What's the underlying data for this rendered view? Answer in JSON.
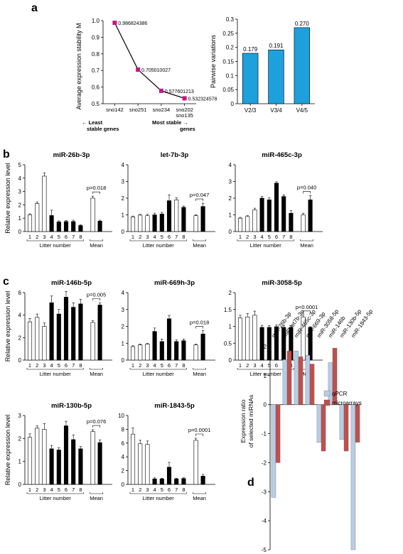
{
  "panel_labels": [
    "a",
    "b",
    "c",
    "d"
  ],
  "chart_data": [
    {
      "id": "a1",
      "type": "line",
      "ylabel": "Average expression stability M",
      "categories": [
        "sno142",
        "sno251",
        "sno234",
        "sno202\nsno135"
      ],
      "values": [
        0.986824386,
        0.705010027,
        0.577601213,
        0.532324578
      ],
      "value_labels": [
        "0.986824386",
        "0.705010027",
        "0.577601213",
        "0.532324578"
      ],
      "ylim": [
        0.5,
        1.0
      ],
      "yticks": [
        0.5,
        0.6,
        0.7,
        0.8,
        0.9,
        1.0
      ],
      "ytick_labels": [
        "0.5",
        "0.6",
        "0.7",
        "0.8",
        "0.9",
        "1.0"
      ],
      "annotation_left": "Least stable genes",
      "annotation_right": "Most stable genes",
      "marker_color": "#c71585"
    },
    {
      "id": "a2",
      "type": "bar",
      "ylabel": "Pairwise variations",
      "categories": [
        "V2/3",
        "V3/4",
        "V4/5"
      ],
      "values": [
        0.179,
        0.191,
        0.27
      ],
      "value_labels": [
        "0.179",
        "0.191",
        "0.270"
      ],
      "ylim": [
        0,
        0.3
      ],
      "yticks": [
        0,
        0.05,
        0.1,
        0.15,
        0.2,
        0.25,
        0.3
      ],
      "ytick_labels": [
        "0",
        "0.05",
        "0.1",
        "0.15",
        "0.2",
        "0.25",
        "0.3"
      ],
      "bar_color": "#1ea0dc"
    },
    {
      "id": "b1",
      "type": "bar",
      "title": "miR-26b-3p",
      "ylabel": "Relative expression level",
      "xlabel": "Litter number",
      "ylim": [
        0,
        5
      ],
      "yticks": [
        0,
        1,
        2,
        3,
        4,
        5
      ],
      "ytick_labels": [
        "0",
        "1",
        "2",
        "3",
        "4",
        "5"
      ],
      "categories": [
        "1",
        "2",
        "3",
        "4",
        "5",
        "6",
        "7",
        "8"
      ],
      "values": [
        1.25,
        2.1,
        4.15,
        1.2,
        0.72,
        0.75,
        0.75,
        0.45
      ],
      "errors": [
        0.08,
        0.12,
        0.25,
        0.4,
        0.08,
        0.08,
        0.1,
        0.05
      ],
      "fill": [
        "white",
        "white",
        "white",
        "black",
        "black",
        "black",
        "black",
        "black"
      ],
      "mean_label": "Mean",
      "mean_values": [
        2.5,
        0.78
      ],
      "mean_errors": [
        0.15,
        0.07
      ],
      "pvalue": "p=0.018"
    },
    {
      "id": "b2",
      "type": "bar",
      "title": "let-7b-3p",
      "xlabel": "Litter number",
      "ylim": [
        0,
        4
      ],
      "yticks": [
        0,
        1,
        2,
        3,
        4
      ],
      "ytick_labels": [
        "0",
        "1",
        "2",
        "3",
        "4"
      ],
      "categories": [
        "1",
        "2",
        "3",
        "4",
        "5",
        "6",
        "7",
        "8"
      ],
      "values": [
        0.88,
        0.98,
        0.95,
        1.0,
        1.05,
        1.85,
        1.9,
        1.45
      ],
      "errors": [
        0.05,
        0.05,
        0.08,
        0.1,
        0.1,
        0.35,
        0.12,
        0.08
      ],
      "fill": [
        "white",
        "white",
        "white",
        "black",
        "black",
        "black",
        "white",
        "black"
      ],
      "mean_label": "Mean",
      "mean_values": [
        0.95,
        1.5
      ],
      "mean_errors": [
        0.06,
        0.2
      ],
      "pvalue": "p=0.047"
    },
    {
      "id": "b3",
      "type": "bar",
      "title": "miR-465c-3p",
      "xlabel": "Litter number",
      "ylim": [
        0,
        4
      ],
      "yticks": [
        0,
        1,
        2,
        3,
        4
      ],
      "ytick_labels": [
        "0",
        "1",
        "2",
        "3",
        "4"
      ],
      "categories": [
        "1",
        "2",
        "3",
        "4",
        "5",
        "6",
        "7",
        "8"
      ],
      "values": [
        0.8,
        0.9,
        1.3,
        2.0,
        1.9,
        2.9,
        2.1,
        1.1
      ],
      "errors": [
        0.05,
        0.05,
        0.1,
        0.1,
        0.12,
        0.08,
        0.1,
        0.15
      ],
      "fill": [
        "white",
        "white",
        "white",
        "black",
        "black",
        "black",
        "black",
        "black"
      ],
      "mean_label": "Mean",
      "mean_values": [
        1.0,
        1.9
      ],
      "mean_errors": [
        0.1,
        0.25
      ],
      "pvalue": "p=0.040"
    },
    {
      "id": "c1",
      "type": "bar",
      "title": "miR-146b-5p",
      "ylabel": "Relative expression level",
      "xlabel": "Litter number",
      "ylim": [
        0,
        6
      ],
      "yticks": [
        0,
        2,
        4,
        6
      ],
      "ytick_labels": [
        "0",
        "2",
        "4",
        "6"
      ],
      "categories": [
        "1",
        "2",
        "3",
        "4",
        "5",
        "6",
        "7",
        "8"
      ],
      "values": [
        3.4,
        3.8,
        3.0,
        5.1,
        4.1,
        5.6,
        4.7,
        5.0
      ],
      "errors": [
        0.3,
        0.3,
        0.3,
        0.6,
        0.4,
        0.5,
        0.4,
        0.4
      ],
      "fill": [
        "white",
        "white",
        "white",
        "black",
        "black",
        "black",
        "black",
        "black"
      ],
      "mean_label": "Mean",
      "mean_values": [
        3.35,
        4.9
      ],
      "mean_errors": [
        0.15,
        0.2
      ],
      "pvalue": "p=0.005"
    },
    {
      "id": "c2",
      "type": "bar",
      "title": "miR-669h-3p",
      "xlabel": "Litter number",
      "ylim": [
        0,
        4
      ],
      "yticks": [
        0,
        1,
        2,
        3,
        4
      ],
      "ytick_labels": [
        "0",
        "1",
        "2",
        "3",
        "4"
      ],
      "categories": [
        "1",
        "2",
        "3",
        "4",
        "5",
        "6",
        "7",
        "8"
      ],
      "values": [
        0.8,
        0.9,
        0.95,
        1.7,
        1.1,
        2.45,
        1.1,
        1.15
      ],
      "errors": [
        0.05,
        0.05,
        0.05,
        0.2,
        0.15,
        0.2,
        0.1,
        0.1
      ],
      "fill": [
        "white",
        "white",
        "white",
        "black",
        "black",
        "black",
        "black",
        "black"
      ],
      "mean_label": "Mean",
      "mean_values": [
        0.9,
        1.55
      ],
      "mean_errors": [
        0.05,
        0.2
      ],
      "pvalue": "p=0.018"
    },
    {
      "id": "c3",
      "type": "bar",
      "title": "miR-3058-5p",
      "xlabel": "Litter number",
      "ylim": [
        0,
        2
      ],
      "yticks": [
        0,
        0.5,
        1,
        1.5,
        2
      ],
      "ytick_labels": [
        "0",
        "0.5",
        "1",
        "1.5",
        "2"
      ],
      "categories": [
        "1",
        "2",
        "3",
        "4",
        "5",
        "6",
        "7",
        "8"
      ],
      "values": [
        1.25,
        1.28,
        1.33,
        0.97,
        0.97,
        0.99,
        0.97,
        0.97
      ],
      "errors": [
        0.08,
        0.1,
        0.12,
        0.06,
        0.05,
        0.05,
        0.05,
        0.05
      ],
      "fill": [
        "white",
        "white",
        "white",
        "black",
        "black",
        "black",
        "black",
        "black"
      ],
      "mean_label": "Mean",
      "mean_values": [
        1.28,
        0.97
      ],
      "mean_errors": [
        0.05,
        0.02
      ],
      "pvalue": "p<0.0001"
    },
    {
      "id": "c4",
      "type": "bar",
      "title": "miR-130b-5p",
      "ylabel": "Relative expression level",
      "xlabel": "Litter number",
      "ylim": [
        0,
        3
      ],
      "yticks": [
        0,
        1,
        2,
        3
      ],
      "ytick_labels": [
        "0",
        "1",
        "2",
        "3"
      ],
      "categories": [
        "1",
        "2",
        "3",
        "4",
        "5",
        "6",
        "7",
        "8"
      ],
      "values": [
        2.05,
        2.45,
        2.4,
        1.55,
        1.5,
        2.55,
        1.95,
        1.55
      ],
      "errors": [
        0.15,
        0.1,
        0.25,
        0.15,
        0.1,
        0.2,
        0.2,
        0.1
      ],
      "fill": [
        "white",
        "white",
        "white",
        "black",
        "black",
        "black",
        "black",
        "black"
      ],
      "mean_label": "Mean",
      "mean_values": [
        2.3,
        1.82
      ],
      "mean_errors": [
        0.08,
        0.12
      ],
      "pvalue": "p=0.076"
    },
    {
      "id": "c5",
      "type": "bar",
      "title": "miR-1843-5p",
      "xlabel": "Litter number",
      "ylim": [
        0,
        10
      ],
      "yticks": [
        0,
        2,
        4,
        6,
        8,
        10
      ],
      "ytick_labels": [
        "0",
        "2",
        "4",
        "6",
        "8",
        "10"
      ],
      "categories": [
        "1",
        "2",
        "3",
        "4",
        "5",
        "6",
        "7",
        "8"
      ],
      "values": [
        7.3,
        5.9,
        5.8,
        0.8,
        0.8,
        2.5,
        0.8,
        0.85
      ],
      "errors": [
        0.9,
        0.5,
        0.5,
        0.15,
        0.1,
        0.7,
        0.1,
        0.1
      ],
      "fill": [
        "white",
        "white",
        "white",
        "black",
        "black",
        "black",
        "black",
        "black"
      ],
      "mean_label": "Mean",
      "mean_values": [
        6.4,
        1.2
      ],
      "mean_errors": [
        0.3,
        0.25
      ],
      "pvalue": "p=0.0001"
    },
    {
      "id": "d",
      "type": "bar",
      "ylabel": "Expression ratio of selected miRNAs",
      "categories": [
        "miR-26b-3p",
        "miR-let7b-3p",
        "miR-465c-3p",
        "miR-669-3p",
        "miR-3058-5p",
        "miR-146b",
        "miR-130b-5p",
        "miR-1843-5p"
      ],
      "ylim": [
        -5,
        2
      ],
      "yticks": [
        -5,
        -4,
        -3,
        -2,
        -1,
        0,
        1,
        2
      ],
      "ytick_labels": [
        "-5",
        "-4",
        "-3",
        "-2",
        "-1",
        "0",
        "1",
        "2"
      ],
      "series": [
        {
          "name": "qPCR",
          "values": [
            -3.2,
            1.55,
            1.85,
            1.7,
            -1.3,
            1.45,
            -1.2,
            -5.0
          ],
          "color": "#b8cce4"
        },
        {
          "name": "microarrays",
          "values": [
            -2.0,
            1.85,
            1.65,
            1.4,
            -1.6,
            1.95,
            -1.6,
            -1.3
          ],
          "color": "#c0504d"
        }
      ],
      "legend_position": "right"
    }
  ]
}
